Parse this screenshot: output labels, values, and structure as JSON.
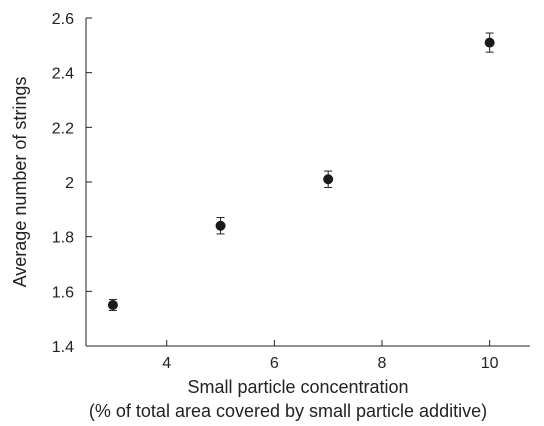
{
  "chart_data": {
    "type": "scatter",
    "xlabel": "Small particle concentration",
    "xlabel_sub": "(% of total area covered by small particle additive)",
    "ylabel": "Average number of strings",
    "xlim": [
      2.5,
      10.75
    ],
    "ylim": [
      1.4,
      2.6
    ],
    "x_ticks": [
      4,
      6,
      8,
      10
    ],
    "y_ticks": [
      1.4,
      1.6,
      1.8,
      2.0,
      2.2,
      2.4,
      2.6
    ],
    "x_tick_labels": [
      "4",
      "6",
      "8",
      "10"
    ],
    "y_tick_labels": [
      "1.4",
      "1.6",
      "1.8",
      "2",
      "2.2",
      "2.4",
      "2.6"
    ],
    "grid": false,
    "series": [
      {
        "x": [
          3,
          5,
          7,
          10
        ],
        "y": [
          1.55,
          1.84,
          2.01,
          2.51
        ],
        "error": [
          0.02,
          0.03,
          0.03,
          0.035
        ],
        "marker_color": "#1a1a1a"
      }
    ]
  }
}
